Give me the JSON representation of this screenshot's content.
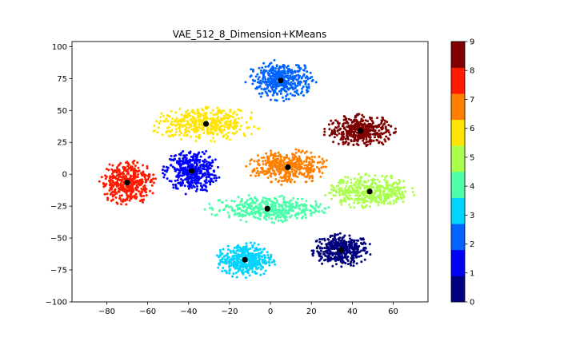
{
  "chart_data": {
    "type": "scatter",
    "title": "VAE_512_8_Dimension+KMeans",
    "xlabel": "",
    "ylabel": "",
    "xlim": [
      -97,
      77
    ],
    "ylim": [
      -100,
      104
    ],
    "x_ticks": [
      -80,
      -60,
      -40,
      -20,
      0,
      20,
      40,
      60
    ],
    "y_ticks": [
      -100,
      -75,
      -50,
      -25,
      0,
      25,
      50,
      75,
      100
    ],
    "grid": false,
    "legend": "none",
    "colorbar": {
      "min": 0,
      "max": 9,
      "ticks": [
        0,
        1,
        2,
        3,
        4,
        5,
        6,
        7,
        8,
        9
      ],
      "colors": [
        "#00007f",
        "#0000ff",
        "#0063ff",
        "#00d4ff",
        "#4dffaa",
        "#aaff4d",
        "#ffe500",
        "#ff7f00",
        "#ff1a00",
        "#7f0000"
      ]
    },
    "clusters": [
      {
        "label": 0,
        "center": [
          34.5,
          -59.5
        ],
        "spread": [
          15,
          13
        ]
      },
      {
        "label": 1,
        "center": [
          -38.5,
          2.5
        ],
        "spread": [
          14,
          18
        ]
      },
      {
        "label": 2,
        "center": [
          5,
          73.5
        ],
        "spread": [
          17,
          16
        ]
      },
      {
        "label": 3,
        "center": [
          -12.5,
          -67
        ],
        "spread": [
          15,
          14
        ]
      },
      {
        "label": 4,
        "center": [
          -1.5,
          -27
        ],
        "spread": [
          30,
          11
        ]
      },
      {
        "label": 5,
        "center": [
          48.5,
          -13.5
        ],
        "spread": [
          22,
          14
        ]
      },
      {
        "label": 6,
        "center": [
          -31.5,
          39.5
        ],
        "spread": [
          28,
          14
        ]
      },
      {
        "label": 7,
        "center": [
          8.5,
          5.5
        ],
        "spread": [
          20,
          14
        ]
      },
      {
        "label": 8,
        "center": [
          -70,
          -6.5
        ],
        "spread": [
          14,
          18
        ]
      },
      {
        "label": 9,
        "center": [
          44,
          34
        ],
        "spread": [
          18,
          13
        ]
      }
    ],
    "centroids": [
      [
        34.5,
        -59.5
      ],
      [
        -38.5,
        2.5
      ],
      [
        5,
        73.5
      ],
      [
        -12.5,
        -67
      ],
      [
        -1.5,
        -27
      ],
      [
        48.5,
        -13.5
      ],
      [
        -31.5,
        39.5
      ],
      [
        8.5,
        5.5
      ],
      [
        -70,
        -6.5
      ],
      [
        44,
        34
      ]
    ]
  }
}
